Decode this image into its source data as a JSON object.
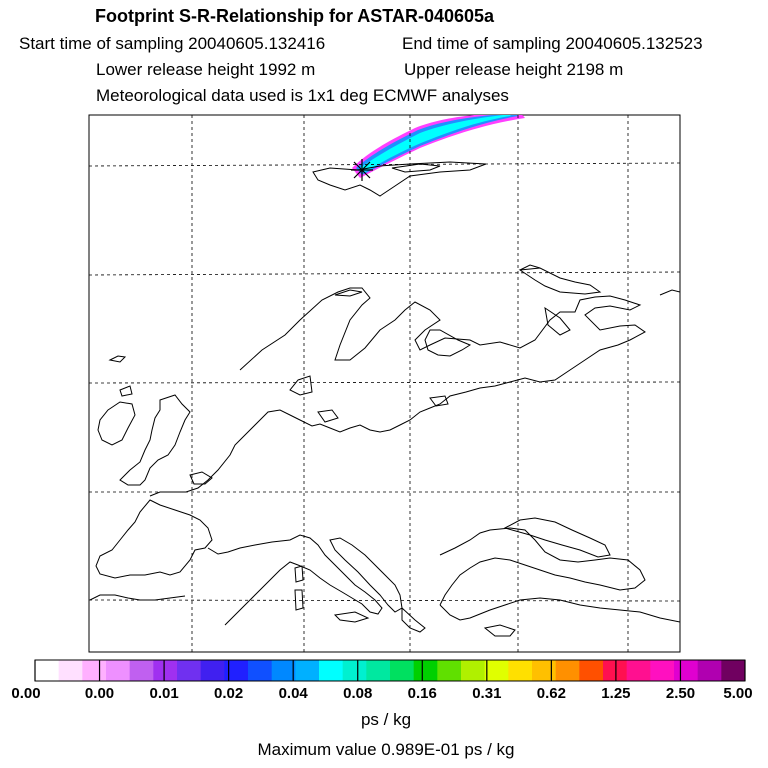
{
  "header": {
    "title": "Footprint S-R-Relationship for ASTAR-040605a",
    "start_time": "Start time of sampling 20040605.132416",
    "end_time": "End time of sampling 20040605.132523",
    "lower_height": "Lower release height 1992 m",
    "upper_height": "Upper release height 2198 m",
    "met_data": "Meteorological data used is 1x1 deg ECMWF analyses"
  },
  "colorbar": {
    "colors": [
      "#ffffff",
      "#ffe0ff",
      "#ffb0ff",
      "#ee90ff",
      "#c060f0",
      "#a030f0",
      "#7030f0",
      "#4020f0",
      "#2020ff",
      "#1050ff",
      "#0088ff",
      "#00b0ff",
      "#00ffff",
      "#00f0d0",
      "#00e8a0",
      "#00e060",
      "#00d000",
      "#60e000",
      "#b0f000",
      "#e0ff00",
      "#ffe000",
      "#ffc000",
      "#ff9000",
      "#ff5000",
      "#ff1050",
      "#ff1090",
      "#ff10c0",
      "#e000d0",
      "#b000b0",
      "#700060"
    ],
    "labels": [
      "0.00",
      "0.00",
      "0.01",
      "0.02",
      "0.04",
      "0.08",
      "0.16",
      "0.31",
      "0.62",
      "1.25",
      "2.50",
      "5.00"
    ]
  },
  "units": "ps / kg",
  "max_value": "Maximum value  0.989E-01 ps / kg"
}
